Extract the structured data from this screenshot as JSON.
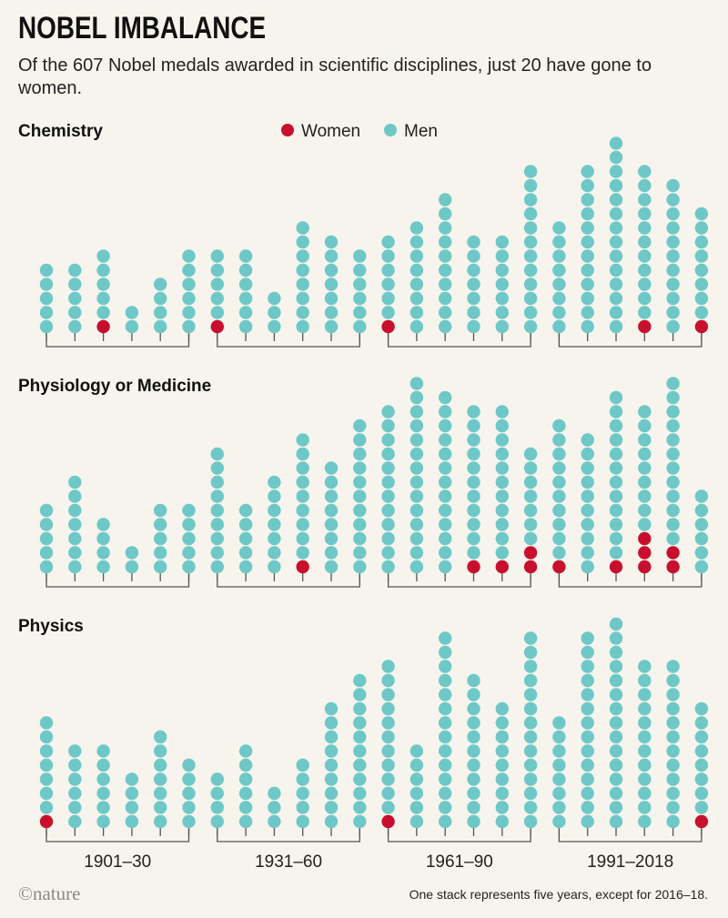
{
  "title": "NOBEL IMBALANCE",
  "subtitle": "Of the 607 Nobel medals awarded in scientific disciplines, just 20 have gone to women.",
  "brand": "©nature",
  "footnote": "One stack represents five years, except for 2016–18.",
  "colors": {
    "women": "#c8102e",
    "men": "#6ec8c8",
    "bracket": "#555555",
    "background": "#f6f4ec"
  },
  "chart_data": {
    "type": "table",
    "legend": [
      {
        "key": "women",
        "label": "Women"
      },
      {
        "key": "men",
        "label": "Men"
      }
    ],
    "legend_placement": "top",
    "periods": [
      "1901–30",
      "1931–60",
      "1961–90",
      "1991–2018"
    ],
    "stacks_per_period": 6,
    "panels": [
      {
        "title": "Chemistry",
        "men": [
          5,
          5,
          5,
          2,
          4,
          6,
          5,
          6,
          3,
          8,
          7,
          6,
          6,
          8,
          10,
          7,
          7,
          12,
          8,
          12,
          14,
          11,
          11,
          8
        ],
        "women": [
          0,
          0,
          1,
          0,
          0,
          0,
          1,
          0,
          0,
          0,
          0,
          0,
          1,
          0,
          0,
          0,
          0,
          0,
          0,
          0,
          0,
          1,
          0,
          1
        ]
      },
      {
        "title": "Physiology or Medicine",
        "men": [
          5,
          7,
          4,
          2,
          5,
          5,
          9,
          5,
          7,
          9,
          8,
          11,
          12,
          14,
          13,
          11,
          11,
          7,
          10,
          10,
          12,
          9,
          12,
          6
        ],
        "women": [
          0,
          0,
          0,
          0,
          0,
          0,
          0,
          0,
          0,
          1,
          0,
          0,
          0,
          0,
          0,
          1,
          1,
          2,
          1,
          0,
          1,
          3,
          2,
          0
        ]
      },
      {
        "title": "Physics",
        "men": [
          7,
          6,
          6,
          4,
          7,
          5,
          4,
          6,
          3,
          5,
          9,
          11,
          11,
          6,
          14,
          11,
          9,
          14,
          8,
          14,
          15,
          12,
          12,
          8
        ],
        "women": [
          1,
          0,
          0,
          0,
          0,
          0,
          0,
          0,
          0,
          0,
          0,
          0,
          1,
          0,
          0,
          0,
          0,
          0,
          0,
          0,
          0,
          0,
          0,
          1
        ]
      }
    ]
  }
}
